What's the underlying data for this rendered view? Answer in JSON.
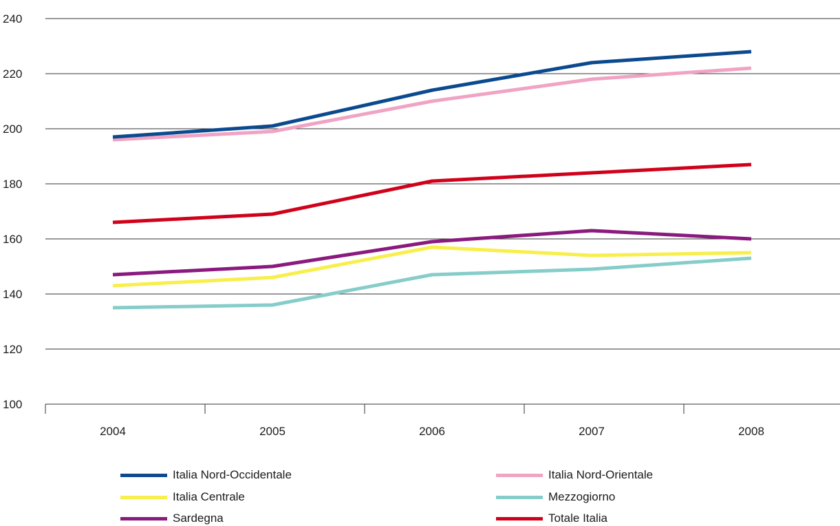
{
  "chart_data": {
    "type": "line",
    "x": [
      "2004",
      "2005",
      "2006",
      "2007",
      "2008"
    ],
    "ylim": [
      100,
      240
    ],
    "yticks": [
      100,
      120,
      140,
      160,
      180,
      200,
      220,
      240
    ],
    "grid": true,
    "legend_position": "bottom",
    "series": [
      {
        "name": "Italia Nord-Occidentale",
        "color": "#0b4a8f",
        "values": [
          197,
          201,
          214,
          224,
          228
        ]
      },
      {
        "name": "Italia Nord-Orientale",
        "color": "#f0a3c3",
        "values": [
          196,
          199,
          210,
          218,
          222
        ]
      },
      {
        "name": "Italia Centrale",
        "color": "#f8ef4c",
        "values": [
          143,
          146,
          157,
          154,
          155
        ]
      },
      {
        "name": "Mezzogiorno",
        "color": "#86cdca",
        "values": [
          135,
          136,
          147,
          149,
          153
        ]
      },
      {
        "name": "Sardegna",
        "color": "#8a1a7e",
        "values": [
          147,
          150,
          159,
          163,
          160
        ]
      },
      {
        "name": "Totale Italia",
        "color": "#d0021b",
        "values": [
          166,
          169,
          181,
          184,
          187
        ]
      }
    ]
  }
}
